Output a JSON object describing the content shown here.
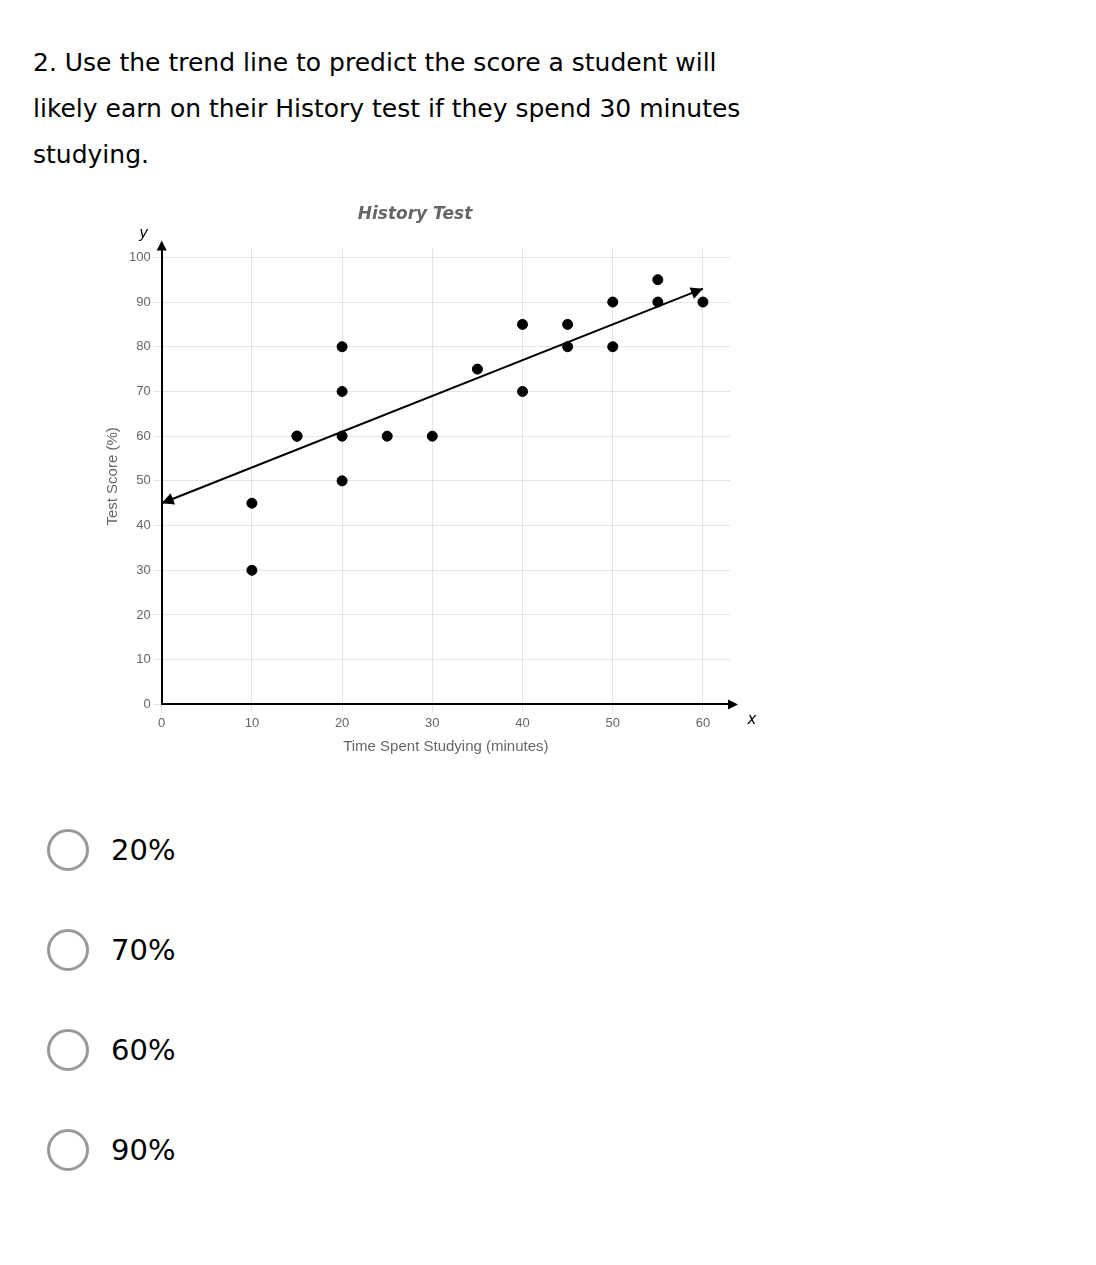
{
  "chart_data": {
    "type": "scatter",
    "title": "History Test",
    "xlabel": "Time Spent Studying (minutes)",
    "ylabel": "Test Score (%)",
    "series": [
      {
        "type": "scatter",
        "color": "#000000",
        "marker": "circle",
        "x": [
          10,
          10,
          15,
          15,
          20,
          20,
          20,
          20,
          25,
          30,
          35,
          40,
          40,
          45,
          45,
          50,
          50,
          55,
          55,
          60
        ],
        "values": [
          30,
          45,
          60,
          60,
          50,
          60,
          70,
          80,
          60,
          60,
          75,
          85,
          70,
          80,
          85,
          80,
          90,
          90,
          95,
          90
        ]
      },
      {
        "type": "line",
        "color": "#000000",
        "line_style": "solid",
        "x": [
          0,
          60
        ],
        "values": [
          45,
          93
        ]
      }
    ],
    "xlim": [
      0,
      63
    ],
    "ylim": [
      0,
      102
    ],
    "xticks": [
      0,
      10,
      20,
      30,
      40,
      50,
      60
    ],
    "yticks": [
      0,
      10,
      20,
      30,
      40,
      50,
      60,
      70,
      80,
      90,
      100
    ],
    "grid": true,
    "annotations": {
      "question": [
        "2. Use the trend line to predict the score a student will",
        "likely earn on their History test if they spend 30 minutes",
        "studying."
      ],
      "choices": [
        "20%",
        "70%",
        "60%",
        "90%"
      ],
      "axis_names": [
        "x",
        "y"
      ]
    }
  }
}
